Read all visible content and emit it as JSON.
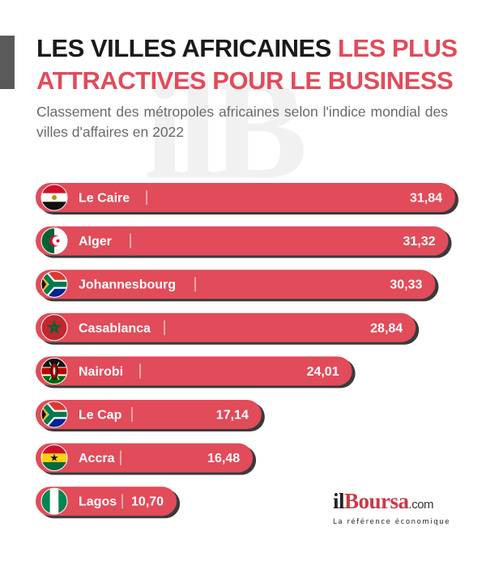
{
  "header": {
    "title_part1": "LES VILLES AFRICAINES",
    "title_part2": "LES PLUS ATTRACTIVES POUR LE BUSINESS",
    "subtitle": "Classement des métropoles africaines selon l'indice mondial des villes d'affaires en 2022",
    "watermark": "ilB"
  },
  "colors": {
    "bar": "#e24b59",
    "bar_shadow": "#3a3a3a",
    "title_accent": "#e24b59",
    "title_dark": "#1a1a1a"
  },
  "chart_data": {
    "type": "bar",
    "orientation": "horizontal",
    "categories": [
      "Le Caire",
      "Alger",
      "Johannesbourg",
      "Casablanca",
      "Nairobi",
      "Le Cap",
      "Accra",
      "Lagos"
    ],
    "values": [
      31.84,
      31.32,
      30.33,
      28.84,
      24.01,
      17.14,
      16.48,
      10.7
    ],
    "value_labels": [
      "31,84",
      "31,32",
      "30,33",
      "28,84",
      "24,01",
      "17,14",
      "16,48",
      "10,70"
    ],
    "flags": [
      "egypt-flag-icon",
      "algeria-flag-icon",
      "south-africa-flag-icon",
      "morocco-flag-icon",
      "kenya-flag-icon",
      "south-africa-flag-icon",
      "ghana-flag-icon",
      "nigeria-flag-icon"
    ],
    "grid": false,
    "legend": "none"
  },
  "logo": {
    "prefix": "il",
    "brand": "Boursa",
    "suffix": ".com",
    "tagline": "La référence économique"
  }
}
